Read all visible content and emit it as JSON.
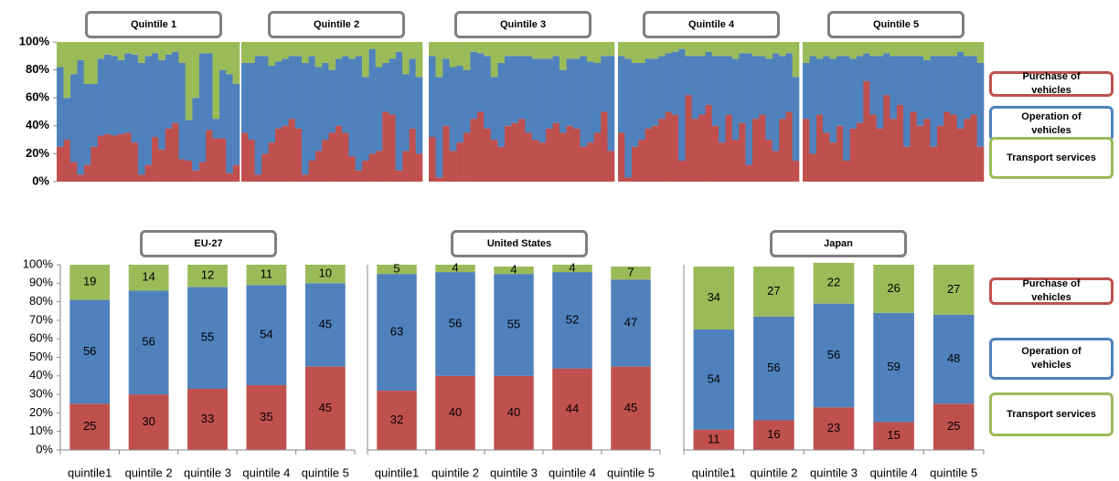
{
  "chart_data": [
    {
      "type": "bar",
      "title": "Quintile 1",
      "ylim": [
        0,
        100
      ],
      "yticks": [
        {
          "value": 0,
          "label": "0%"
        },
        {
          "value": 20,
          "label": "20%"
        },
        {
          "value": 40,
          "label": "40%"
        },
        {
          "value": 60,
          "label": "60%"
        },
        {
          "value": 80,
          "label": "80%"
        },
        {
          "value": 100,
          "label": "100%"
        }
      ],
      "series": [
        {
          "color": "#c0504d",
          "values": [
            25,
            30,
            14,
            5,
            12,
            25,
            33,
            34,
            33,
            34,
            35,
            28,
            5,
            12,
            32,
            23,
            38,
            42,
            16,
            15,
            8,
            14,
            37,
            31,
            31,
            6,
            12
          ]
        },
        {
          "color": "#4f81bd",
          "values": [
            57,
            30,
            63,
            82,
            58,
            45,
            55,
            57,
            57,
            53,
            57,
            63,
            80,
            78,
            60,
            64,
            53,
            51,
            69,
            29,
            52,
            78,
            55,
            14,
            49,
            71,
            58
          ]
        },
        {
          "color": "#9bbb59",
          "values": [
            18,
            40,
            23,
            13,
            30,
            30,
            12,
            9,
            10,
            13,
            8,
            9,
            15,
            10,
            8,
            13,
            9,
            7,
            15,
            56,
            40,
            8,
            8,
            55,
            20,
            23,
            30
          ]
        }
      ]
    },
    {
      "type": "bar",
      "title": "Quintile 2",
      "ylim": [
        0,
        100
      ],
      "series": [
        {
          "color": "#c0504d",
          "values": [
            35,
            30,
            5,
            20,
            28,
            38,
            40,
            45,
            38,
            5,
            15,
            22,
            30,
            35,
            40,
            35,
            18,
            8,
            15,
            20,
            22,
            50,
            48,
            8,
            22,
            38,
            20
          ]
        },
        {
          "color": "#4f81bd",
          "values": [
            50,
            55,
            85,
            70,
            55,
            48,
            48,
            45,
            52,
            80,
            75,
            60,
            55,
            45,
            48,
            55,
            70,
            82,
            60,
            75,
            60,
            35,
            40,
            85,
            55,
            50,
            55
          ]
        },
        {
          "color": "#9bbb59",
          "values": [
            15,
            15,
            10,
            10,
            17,
            14,
            12,
            10,
            10,
            15,
            10,
            18,
            15,
            20,
            12,
            10,
            12,
            10,
            25,
            5,
            18,
            15,
            12,
            7,
            23,
            12,
            25
          ]
        }
      ]
    },
    {
      "type": "bar",
      "title": "Quintile 3",
      "ylim": [
        0,
        100
      ],
      "series": [
        {
          "color": "#c0504d",
          "values": [
            32,
            3,
            40,
            22,
            28,
            35,
            45,
            50,
            38,
            30,
            25,
            40,
            42,
            45,
            35,
            30,
            28,
            38,
            42,
            35,
            40,
            38,
            25,
            28,
            35,
            50,
            22
          ]
        },
        {
          "color": "#4f81bd",
          "values": [
            58,
            72,
            48,
            60,
            55,
            45,
            48,
            42,
            52,
            45,
            60,
            50,
            48,
            45,
            55,
            58,
            60,
            50,
            48,
            45,
            48,
            50,
            65,
            58,
            50,
            40,
            68
          ]
        },
        {
          "color": "#9bbb59",
          "values": [
            10,
            25,
            12,
            18,
            17,
            20,
            7,
            8,
            10,
            25,
            15,
            10,
            10,
            10,
            10,
            12,
            12,
            12,
            10,
            20,
            12,
            12,
            10,
            14,
            15,
            10,
            10
          ]
        }
      ]
    },
    {
      "type": "bar",
      "title": "Quintile 4",
      "ylim": [
        0,
        100
      ],
      "series": [
        {
          "color": "#c0504d",
          "values": [
            35,
            3,
            25,
            30,
            38,
            40,
            45,
            50,
            48,
            15,
            62,
            45,
            48,
            55,
            40,
            28,
            48,
            30,
            42,
            12,
            45,
            48,
            30,
            22,
            45,
            50,
            15
          ]
        },
        {
          "color": "#4f81bd",
          "values": [
            55,
            85,
            60,
            55,
            50,
            48,
            45,
            42,
            45,
            80,
            28,
            45,
            42,
            38,
            50,
            62,
            42,
            58,
            50,
            80,
            45,
            42,
            58,
            70,
            45,
            42,
            60
          ]
        },
        {
          "color": "#9bbb59",
          "values": [
            10,
            12,
            15,
            15,
            12,
            12,
            10,
            8,
            7,
            5,
            10,
            10,
            10,
            7,
            10,
            10,
            10,
            12,
            8,
            8,
            10,
            10,
            12,
            8,
            10,
            8,
            25
          ]
        }
      ]
    },
    {
      "type": "bar",
      "title": "Quintile 5",
      "ylim": [
        0,
        100
      ],
      "series": [
        {
          "name": "Purchase of vehicles",
          "color": "#c0504d",
          "values": [
            45,
            20,
            48,
            35,
            28,
            40,
            15,
            38,
            42,
            72,
            48,
            38,
            62,
            45,
            55,
            25,
            50,
            40,
            45,
            25,
            40,
            50,
            48,
            38,
            45,
            48,
            25
          ]
        },
        {
          "name": "Operation of vehicles",
          "color": "#4f81bd",
          "values": [
            40,
            70,
            40,
            55,
            60,
            50,
            75,
            50,
            48,
            20,
            42,
            52,
            30,
            45,
            35,
            65,
            40,
            50,
            42,
            65,
            50,
            40,
            42,
            55,
            45,
            42,
            60
          ]
        },
        {
          "name": "Transport services",
          "color": "#9bbb59",
          "values": [
            15,
            10,
            12,
            10,
            12,
            10,
            10,
            12,
            10,
            8,
            10,
            10,
            8,
            10,
            10,
            10,
            10,
            10,
            13,
            10,
            10,
            10,
            10,
            7,
            10,
            10,
            15
          ]
        }
      ]
    },
    {
      "type": "bar",
      "title": "EU-27",
      "ylim": [
        0,
        100
      ],
      "data_labels": true,
      "categories": [
        "quintile1",
        "quintile 2",
        "quintile 3",
        "quintile 4",
        "quintile 5"
      ],
      "yticks": [
        {
          "value": 0,
          "label": "0%"
        },
        {
          "value": 10,
          "label": "10%"
        },
        {
          "value": 20,
          "label": "20%"
        },
        {
          "value": 30,
          "label": "30%"
        },
        {
          "value": 40,
          "label": "40%"
        },
        {
          "value": 50,
          "label": "50%"
        },
        {
          "value": 60,
          "label": "60%"
        },
        {
          "value": 70,
          "label": "70%"
        },
        {
          "value": 80,
          "label": "80%"
        },
        {
          "value": 90,
          "label": "90%"
        },
        {
          "value": 100,
          "label": "100%"
        }
      ],
      "series": [
        {
          "color": "#c0504d",
          "values": [
            25,
            30,
            33,
            35,
            45
          ]
        },
        {
          "color": "#4f81bd",
          "values": [
            56,
            56,
            55,
            54,
            45
          ]
        },
        {
          "color": "#9bbb59",
          "values": [
            19,
            14,
            12,
            11,
            10
          ]
        }
      ]
    },
    {
      "type": "bar",
      "title": "United States",
      "ylim": [
        0,
        100
      ],
      "data_labels": true,
      "categories": [
        "quintile1",
        "quintile 2",
        "quintile 3",
        "quintile 4",
        "quintile 5"
      ],
      "series": [
        {
          "color": "#c0504d",
          "values": [
            32,
            40,
            40,
            44,
            45
          ]
        },
        {
          "color": "#4f81bd",
          "values": [
            63,
            56,
            55,
            52,
            47
          ]
        },
        {
          "color": "#9bbb59",
          "values": [
            5,
            4,
            4,
            4,
            7
          ]
        }
      ]
    },
    {
      "type": "bar",
      "title": "Japan",
      "ylim": [
        0,
        100
      ],
      "data_labels": true,
      "categories": [
        "quintile1",
        "quintile 2",
        "quintile 3",
        "quintile 4",
        "quintile 5"
      ],
      "series": [
        {
          "name": "Purchase of vehicles",
          "color": "#c0504d",
          "values": [
            11,
            16,
            23,
            15,
            25
          ]
        },
        {
          "name": "Operation of vehicles",
          "color": "#4f81bd",
          "values": [
            54,
            56,
            56,
            59,
            48
          ]
        },
        {
          "name": "Transport services",
          "color": "#9bbb59",
          "values": [
            34,
            27,
            22,
            26,
            27
          ]
        }
      ]
    }
  ]
}
